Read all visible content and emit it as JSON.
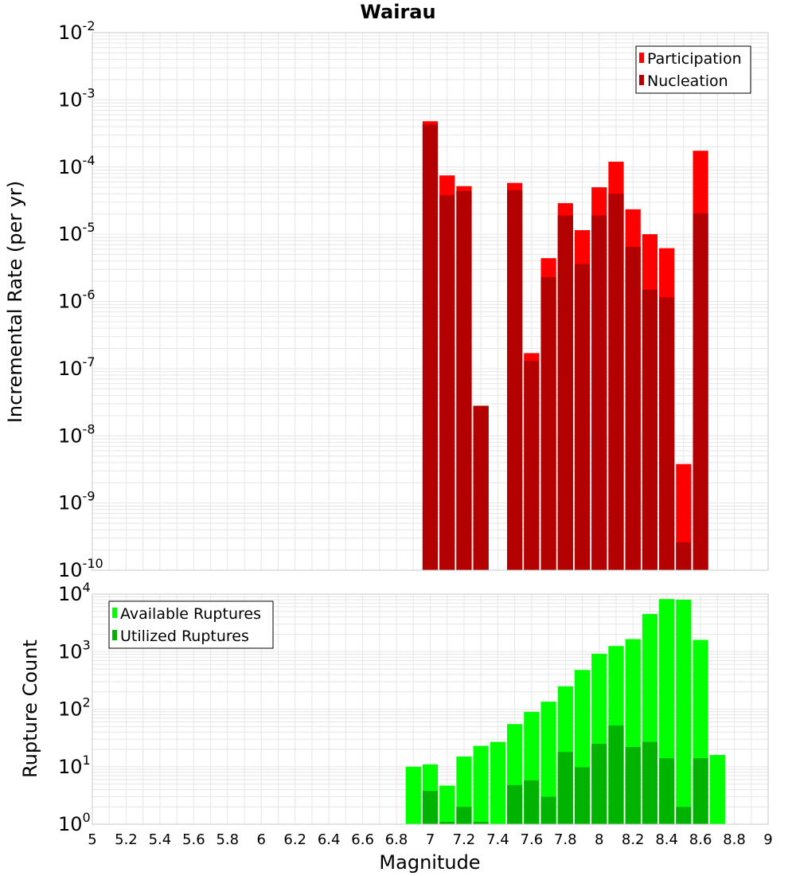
{
  "chart_data": [
    {
      "type": "bar",
      "title": "Wairau",
      "xlabel": "",
      "ylabel": "Incremental Rate (per yr)",
      "scale_y": "log",
      "xlim": [
        5,
        9
      ],
      "ylim": [
        1e-10,
        0.01
      ],
      "ytick_exponents": [
        "-2",
        "-3",
        "-4",
        "-5",
        "-6",
        "-7",
        "-8",
        "-9",
        "-10"
      ],
      "grid": true,
      "legend_position": "top-right",
      "bar_width": 0.1,
      "categories": [
        7.0,
        7.1,
        7.2,
        7.3,
        7.4,
        7.5,
        7.6,
        7.7,
        7.8,
        7.9,
        8.0,
        8.1,
        8.2,
        8.3,
        8.4,
        8.5,
        8.6,
        8.7
      ],
      "series": [
        {
          "name": "Participation",
          "color": "#ff0000",
          "values": [
            0.00048,
            7.5e-05,
            5.2e-05,
            2.8e-08,
            null,
            5.8e-05,
            1.7e-07,
            4.4e-06,
            2.9e-05,
            1.15e-05,
            5e-05,
            0.00012,
            2.35e-05,
            1e-05,
            6.2e-06,
            3.8e-09,
            0.000175,
            null
          ]
        },
        {
          "name": "Nucleation",
          "color": "#b30000",
          "values": [
            0.00043,
            3.8e-05,
            4.4e-05,
            2.8e-08,
            null,
            4.5e-05,
            1.3e-07,
            2.3e-06,
            1.9e-05,
            3.6e-06,
            1.9e-05,
            4e-05,
            6.5e-06,
            1.5e-06,
            1.15e-06,
            2.6e-10,
            2.05e-05,
            null
          ]
        }
      ]
    },
    {
      "type": "bar",
      "title": "",
      "xlabel": "Magnitude",
      "ylabel": "Rupture Count",
      "scale_y": "log",
      "xlim": [
        5,
        9
      ],
      "ylim": [
        1,
        10000
      ],
      "ytick_exponents": [
        "4",
        "3",
        "2",
        "1",
        "0"
      ],
      "xticks": [
        "5",
        "5.2",
        "5.4",
        "5.6",
        "5.8",
        "6",
        "6.2",
        "6.4",
        "6.6",
        "6.8",
        "7",
        "7.2",
        "7.4",
        "7.6",
        "7.8",
        "8",
        "8.2",
        "8.4",
        "8.6",
        "8.8",
        "9"
      ],
      "grid": true,
      "legend_position": "top-left",
      "bar_width": 0.1,
      "categories": [
        6.9,
        7.0,
        7.1,
        7.2,
        7.3,
        7.4,
        7.5,
        7.6,
        7.7,
        7.8,
        7.9,
        8.0,
        8.1,
        8.2,
        8.3,
        8.4,
        8.5,
        8.6,
        8.7
      ],
      "series": [
        {
          "name": "Available Ruptures",
          "color": "#00ff00",
          "values": [
            10,
            11,
            4.7,
            15,
            23,
            27,
            55,
            90,
            135,
            250,
            480,
            920,
            1250,
            1650,
            4500,
            8200,
            8000,
            1600,
            16
          ]
        },
        {
          "name": "Utilized Ruptures",
          "color": "#00b300",
          "values": [
            null,
            3.8,
            1.1,
            2.0,
            1.1,
            null,
            4.8,
            5.8,
            3.0,
            18,
            9.8,
            25,
            52,
            22,
            27,
            14,
            2.0,
            14,
            null
          ]
        }
      ]
    }
  ],
  "colors": {
    "background": "#ffffff",
    "plot_border": "#c8c8c8",
    "grid": "#e6e6e6"
  }
}
